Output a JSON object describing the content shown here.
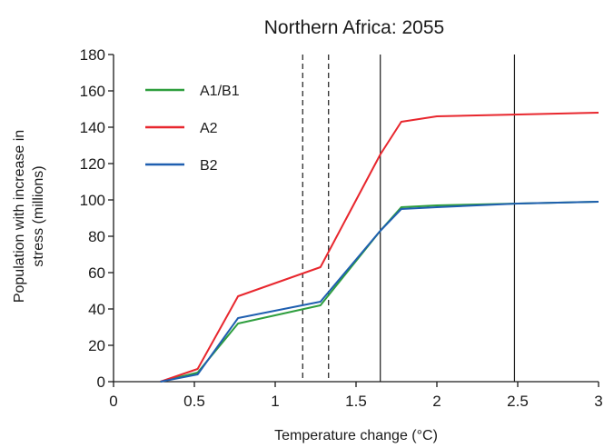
{
  "chart_data": {
    "type": "line",
    "title": "Northern Africa: 2055",
    "xlabel": "Temperature change (°C)",
    "ylabel_line1": "Population with increase in",
    "ylabel_line2": "stress (millions)",
    "xlim": [
      0,
      3
    ],
    "ylim": [
      0,
      180
    ],
    "x_ticks": [
      "0",
      "0.5",
      "1",
      "1.5",
      "2",
      "2.5",
      "3"
    ],
    "x_tick_values": [
      0,
      0.5,
      1,
      1.5,
      2,
      2.5,
      3
    ],
    "y_ticks": [
      "0",
      "20",
      "40",
      "60",
      "80",
      "100",
      "120",
      "140",
      "160",
      "180"
    ],
    "y_tick_values": [
      0,
      20,
      40,
      60,
      80,
      100,
      120,
      140,
      160,
      180
    ],
    "grid": false,
    "legend_position": "top-left",
    "series": [
      {
        "name": "A1/B1",
        "color": "#2e9e3e",
        "x": [
          0.29,
          0.52,
          0.77,
          1.28,
          1.65,
          1.78,
          2.0,
          2.5,
          3.0
        ],
        "y": [
          0,
          5,
          32,
          42,
          83,
          96,
          97,
          98,
          99
        ]
      },
      {
        "name": "A2",
        "color": "#e8272e",
        "x": [
          0.29,
          0.52,
          0.77,
          1.28,
          1.65,
          1.78,
          2.0,
          2.5,
          3.0
        ],
        "y": [
          0,
          7,
          47,
          63,
          125,
          143,
          146,
          147,
          148
        ]
      },
      {
        "name": "B2",
        "color": "#1f5fb0",
        "x": [
          0.29,
          0.52,
          0.77,
          1.28,
          1.65,
          1.78,
          2.0,
          2.5,
          3.0
        ],
        "y": [
          0,
          4,
          35,
          44,
          83,
          95,
          96,
          98,
          99
        ]
      }
    ],
    "reference_lines": [
      {
        "x": 1.17,
        "style": "dashed"
      },
      {
        "x": 1.33,
        "style": "dashed"
      },
      {
        "x": 1.65,
        "style": "solid"
      },
      {
        "x": 2.48,
        "style": "solid"
      }
    ]
  }
}
